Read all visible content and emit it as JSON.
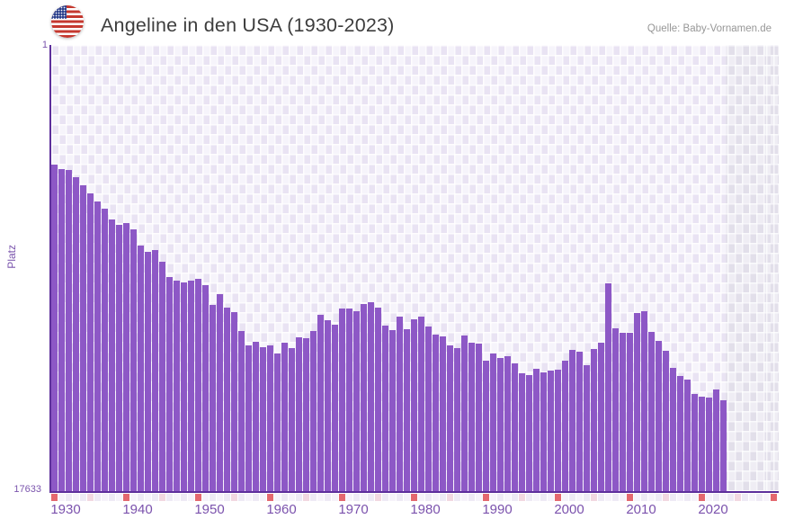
{
  "header": {
    "title": "Angeline in den USA (1930-2023)",
    "source": "Quelle: Baby-Vornamen.de",
    "flag_icon": "us-flag-icon"
  },
  "chart_data": {
    "type": "bar",
    "title": "Angeline in den USA (1930-2023)",
    "xlabel": "",
    "ylabel": "Platz",
    "y_axis": {
      "top_label": "1",
      "bottom_label": "17633",
      "min": 1,
      "max": 17633,
      "inverted": true
    },
    "x_ticks": [
      1930,
      1940,
      1950,
      1960,
      1970,
      1980,
      1990,
      2000,
      2010,
      2020
    ],
    "tick_row": {
      "start": 1930,
      "end": 2030,
      "decade_interval": 10,
      "half_decade_interval": 5
    },
    "no_data_years": {
      "start": 2024,
      "end": 2030
    },
    "years": [
      1930,
      1931,
      1932,
      1933,
      1934,
      1935,
      1936,
      1937,
      1938,
      1939,
      1940,
      1941,
      1942,
      1943,
      1944,
      1945,
      1946,
      1947,
      1948,
      1949,
      1950,
      1951,
      1952,
      1953,
      1954,
      1955,
      1956,
      1957,
      1958,
      1959,
      1960,
      1961,
      1962,
      1963,
      1964,
      1965,
      1966,
      1967,
      1968,
      1969,
      1970,
      1971,
      1972,
      1973,
      1974,
      1975,
      1976,
      1977,
      1978,
      1979,
      1980,
      1981,
      1982,
      1983,
      1984,
      1985,
      1986,
      1987,
      1988,
      1989,
      1990,
      1991,
      1992,
      1993,
      1994,
      1995,
      1996,
      1997,
      1998,
      1999,
      2000,
      2001,
      2002,
      2003,
      2004,
      2005,
      2006,
      2007,
      2008,
      2009,
      2010,
      2011,
      2012,
      2013,
      2014,
      2015,
      2016,
      2017,
      2018,
      2019,
      2020,
      2021,
      2022,
      2023
    ],
    "ranks": [
      4719,
      4897,
      4932,
      5216,
      5535,
      5855,
      6174,
      6458,
      6884,
      7096,
      7025,
      7274,
      7912,
      8161,
      8090,
      8551,
      9190,
      9332,
      9403,
      9332,
      9261,
      9509,
      10289,
      9864,
      10396,
      10573,
      11318,
      11885,
      11743,
      11956,
      11885,
      12204,
      11779,
      11992,
      11566,
      11602,
      11318,
      10679,
      10892,
      11069,
      10431,
      10431,
      10537,
      10254,
      10183,
      10396,
      11105,
      11282,
      10750,
      11247,
      10857,
      10750,
      11140,
      11459,
      11530,
      11885,
      11992,
      11495,
      11779,
      11814,
      12488,
      12204,
      12382,
      12311,
      12595,
      12985,
      13056,
      12807,
      12949,
      12878,
      12843,
      12488,
      12062,
      12133,
      12666,
      12027,
      11779,
      9438,
      11211,
      11389,
      11389,
      10608,
      10537,
      11353,
      11708,
      12098,
      12772,
      13091,
      13233,
      13801,
      13907,
      13943,
      13623,
      14049
    ],
    "colors": {
      "bar": "#8d58c6",
      "axis_line": "#5d2f9b",
      "axis_label": "#7b52ad",
      "grid_cell_dark": "#e9e3f3",
      "grid_cell_light": "#f6f4fb",
      "no_data_cell_dark": "#e2dfea",
      "no_data_cell_light": "#efedf4",
      "tick_decade": "#e4686f",
      "tick_half_decade": "#f2d8e1",
      "tick_even_year": "#eeeaf5",
      "tick_odd_year": "#f6f3fa",
      "title_text": "#3d3d3d",
      "source_text": "#979797"
    },
    "legend": null,
    "grid": true
  }
}
